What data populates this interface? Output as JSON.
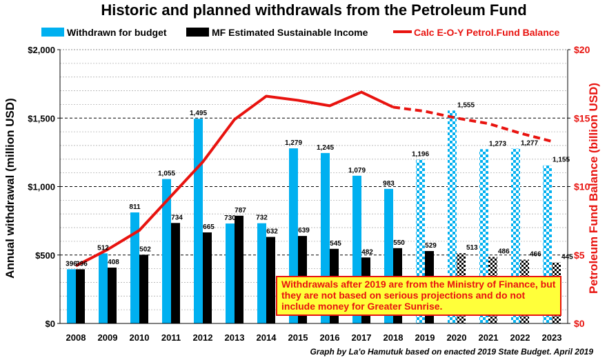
{
  "chart_data": {
    "type": "bar",
    "title": "Historic and planned withdrawals from the Petroleum Fund",
    "categories": [
      "2008",
      "2009",
      "2010",
      "2011",
      "2012",
      "2013",
      "2014",
      "2015",
      "2016",
      "2017",
      "2018",
      "2019",
      "2020",
      "2021",
      "2022",
      "2023"
    ],
    "series": [
      {
        "name": "Withdrawn for budget",
        "color": "#00b0f0",
        "values": [
          396,
          512,
          811,
          1055,
          1495,
          730,
          732,
          1279,
          1245,
          1079,
          983,
          1196,
          1555,
          1273,
          1277,
          1155
        ],
        "labels": [
          "396",
          "512",
          "811",
          "1,055",
          "1,495",
          "730",
          "732",
          "1,279",
          "1,245",
          "1,079",
          "983",
          "1,196",
          "1,555",
          "1,273",
          "1,277",
          "1,155"
        ],
        "planned_from_index": 11
      },
      {
        "name": "MF Estimated Sustainable Income",
        "color": "#000000",
        "values": [
          396,
          408,
          502,
          734,
          665,
          787,
          632,
          639,
          545,
          482,
          550,
          529,
          513,
          486,
          466,
          445
        ],
        "labels": [
          "396",
          "408",
          "502",
          "734",
          "665",
          "787",
          "632",
          "639",
          "545",
          "482",
          "550",
          "529",
          "513",
          "486",
          "466",
          "445"
        ],
        "planned_from_index": 12
      },
      {
        "name": "Calc E-O-Y Petrol.Fund Balance",
        "color": "#e8130f",
        "axis": "right",
        "type": "line",
        "values": [
          4.2,
          5.4,
          6.8,
          9.3,
          11.8,
          14.9,
          16.6,
          16.3,
          15.9,
          16.9,
          15.8,
          15.5,
          15.0,
          14.6,
          13.9,
          13.3
        ],
        "dashed_from_index": 11
      }
    ],
    "ylabel": "Annual withdrawal (million USD)",
    "ylim": [
      0,
      2000
    ],
    "yticks": [
      0,
      500,
      1000,
      1500,
      2000
    ],
    "ytick_labels": [
      "$0",
      "$500",
      "$1,000",
      "$1,500",
      "$2,000"
    ],
    "y2label": "Petroleum Fund Balance  (billion USD)",
    "y2lim": [
      0,
      20
    ],
    "y2ticks": [
      0,
      5,
      10,
      15,
      20
    ],
    "y2tick_labels": [
      "$0",
      "$5",
      "$10",
      "$15",
      "$20"
    ],
    "grid": true,
    "legend_position": "top",
    "annotation": "Withdrawals after 2019 are from the Ministry of Finance, but they are not based on serious projections and do not include money for Greater Sunrise.",
    "credit": "Graph by La'o Hamutuk based on enacted 2019 State Budget. April 2019"
  }
}
